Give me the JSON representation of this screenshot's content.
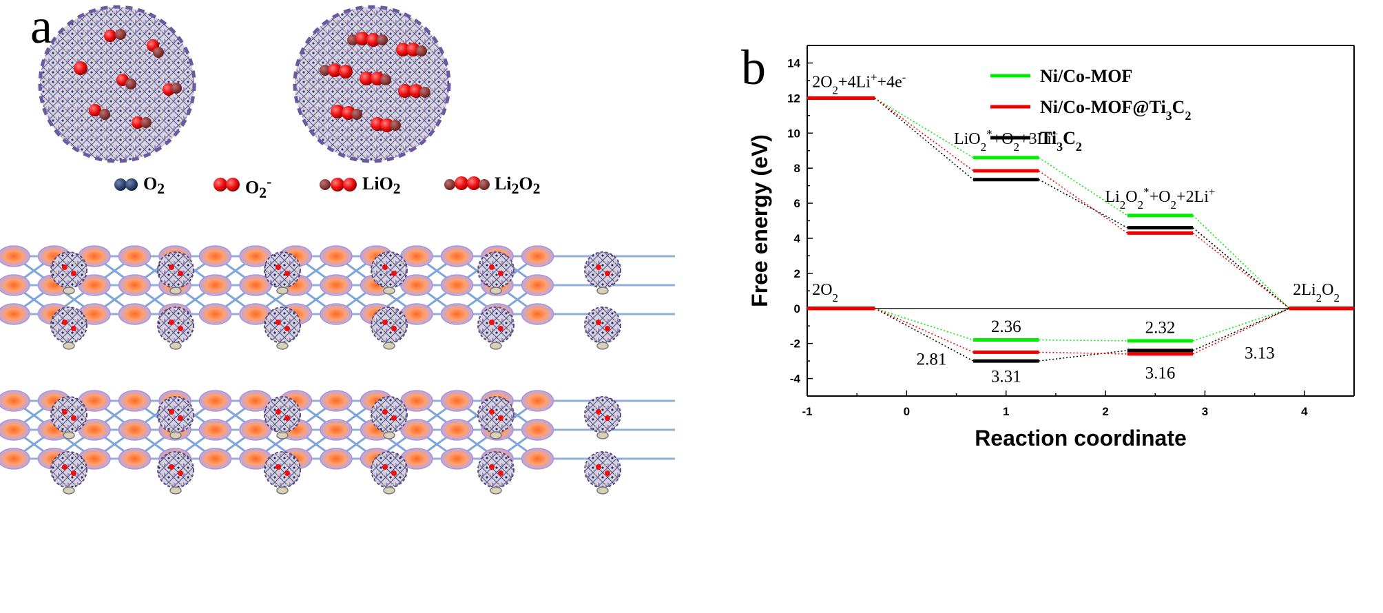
{
  "panel_a": {
    "letter": "a",
    "species_legend": [
      "O2",
      "O2-",
      "LiO2",
      "Li2O2"
    ]
  },
  "panel_b": {
    "letter": "b"
  },
  "chart_data": {
    "type": "line",
    "xlabel": "Reaction coordinate",
    "ylabel": "Free energy (eV)",
    "xlim": [
      -1,
      4.5
    ],
    "ylim": [
      -5,
      15
    ],
    "xticks": [
      -1,
      0,
      1,
      2,
      3,
      4
    ],
    "yticks": [
      -4,
      -2,
      0,
      2,
      4,
      6,
      8,
      10,
      12,
      14
    ],
    "grid": false,
    "legend_position": "top-right",
    "level_positions": [
      -0.65,
      1.0,
      2.55,
      4.15
    ],
    "state_labels": {
      "charge": [
        "2O2+4Li++4e-",
        "LiO2*+O2+3Li+",
        "Li2O2*+O2+2Li+",
        "2Li2O2"
      ],
      "discharge_start": "2O2"
    },
    "series": [
      {
        "name": "Ni/Co-MOF",
        "color": "#00ee00",
        "charge": [
          12,
          8.6,
          5.3,
          0
        ],
        "discharge": [
          0,
          -1.8,
          -1.85,
          0
        ]
      },
      {
        "name": "Ni/Co-MOF@Ti3C2",
        "color": "#ee0000",
        "charge": [
          12,
          7.85,
          4.3,
          0
        ],
        "discharge": [
          0,
          -2.5,
          -2.6,
          0
        ]
      },
      {
        "name": "Ti3C2",
        "color": "#000000",
        "charge": [
          12,
          7.35,
          4.6,
          0
        ],
        "discharge": [
          0,
          -3.0,
          -2.4,
          0
        ]
      }
    ],
    "annotations": [
      {
        "text": "2.36",
        "x": 1.0,
        "y": -1.0
      },
      {
        "text": "2.32",
        "x": 2.55,
        "y": -1.05
      },
      {
        "text": "2.81",
        "x": 0.25,
        "y": -2.85
      },
      {
        "text": "3.31",
        "x": 1.0,
        "y": -3.85
      },
      {
        "text": "3.16",
        "x": 2.55,
        "y": -3.65
      },
      {
        "text": "3.13",
        "x": 3.55,
        "y": -2.5
      }
    ]
  }
}
